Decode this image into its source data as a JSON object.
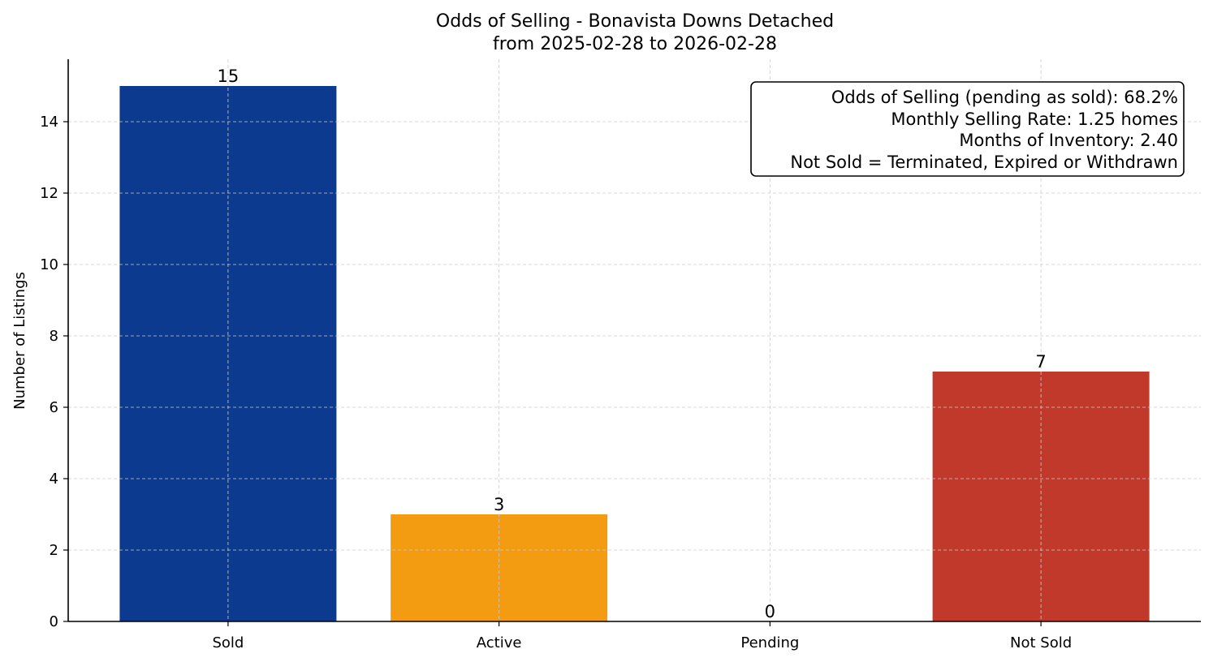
{
  "chart_data": {
    "type": "bar",
    "title": "Odds of Selling - Bonavista Downs Detached",
    "subtitle": "from 2025-02-28 to 2026-02-28",
    "xlabel": "",
    "ylabel": "Number of Listings",
    "categories": [
      "Sold",
      "Active",
      "Pending",
      "Not Sold"
    ],
    "values": [
      15,
      3,
      0,
      7
    ],
    "data_labels": [
      "15",
      "3",
      "0",
      "7"
    ],
    "colors": [
      "#0b3a8e",
      "#f39c12",
      "#1f77b4",
      "#c0392b"
    ],
    "ylim": [
      0,
      15.75
    ],
    "yticks": [
      0,
      2,
      4,
      6,
      8,
      10,
      12,
      14
    ],
    "grid": true,
    "annotation_box": {
      "placement": "top-right",
      "lines": [
        "Odds of Selling (pending as sold): 68.2%",
        "Monthly Selling Rate: 1.25 homes",
        "Months of Inventory: 2.40",
        "Not Sold = Terminated, Expired or Withdrawn"
      ]
    }
  }
}
